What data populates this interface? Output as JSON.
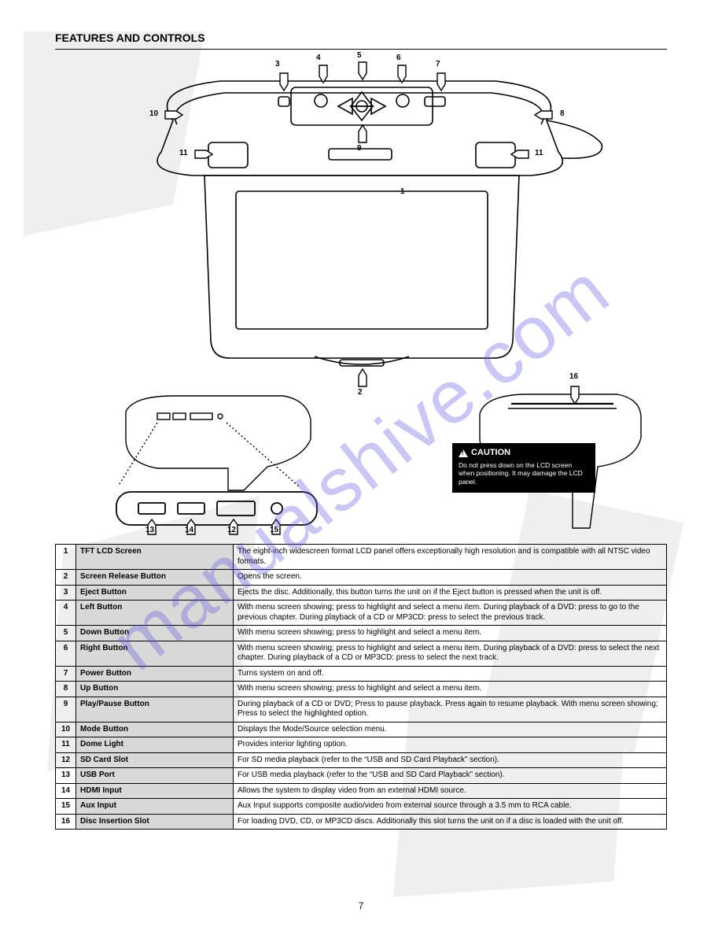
{
  "header": "FEATURES AND CONTROLS",
  "page_number": "7",
  "watermark_text": "manualshive.com",
  "colors": {
    "page_bg": "#ffffff",
    "text": "#000000",
    "rule": "#000000",
    "table_border": "#000000",
    "table_shade": "#d9d9d9",
    "caution_bg": "#000000",
    "caution_text": "#ffffff",
    "watermark": "rgba(90,80,220,0.32)",
    "bg_shape": "#000000"
  },
  "callouts": {
    "c1": "1",
    "c2": "2",
    "c3": "3",
    "c4": "4",
    "c5": "5",
    "c6": "6",
    "c7": "7",
    "c8": "8",
    "c9": "9",
    "c10": "10",
    "c11": "11",
    "c12": "12",
    "c13": "13",
    "c14": "14",
    "c15": "15",
    "c16": "16"
  },
  "caution": {
    "title": "CAUTION",
    "body": "Do not press down on the LCD screen when positioning. It may damage the LCD panel."
  },
  "table": {
    "rows": [
      {
        "n": "1",
        "name": "TFT LCD Screen",
        "desc": "The eight-inch widescreen format LCD panel offers exceptionally high resolution and is compatible with all NTSC video formats."
      },
      {
        "n": "2",
        "name": "Screen Release Button",
        "desc": "Opens the screen."
      },
      {
        "n": "3",
        "name": "Eject Button",
        "desc": "Ejects the disc. Additionally, this button turns the unit on if the Eject button is pressed when the unit is off."
      },
      {
        "n": "4",
        "name": "Left Button",
        "desc": "With menu screen showing; press to highlight and select a menu item. During playback of a DVD: press to go to the previous chapter. During playback of a CD or MP3CD: press to select the previous track."
      },
      {
        "n": "5",
        "name": "Down Button",
        "desc": "With menu screen showing; press to highlight and select a menu item."
      },
      {
        "n": "6",
        "name": "Right Button",
        "desc": "With menu screen showing; press to highlight and select a menu item. During playback of a DVD: press to select the next chapter. During playback of a CD or MP3CD: press to select the next track."
      },
      {
        "n": "7",
        "name": "Power Button",
        "desc": "Turns system on and off."
      },
      {
        "n": "8",
        "name": "Up Button",
        "desc": "With menu screen showing; press to highlight and select a menu item."
      },
      {
        "n": "9",
        "name": "Play/Pause Button",
        "desc": "During playback of a CD or DVD; Press to pause playback. Press again to resume playback. With menu screen showing; Press to select the highlighted option."
      },
      {
        "n": "10",
        "name": "Mode Button",
        "desc": "Displays the Mode/Source selection menu."
      },
      {
        "n": "11",
        "name": "Dome Light",
        "desc": "Provides interior lighting option."
      },
      {
        "n": "12",
        "name": "SD Card Slot",
        "desc": "For SD media playback (refer to the “USB and SD Card Playback” section)."
      },
      {
        "n": "13",
        "name": "USB Port",
        "desc": "For USB media playback (refer to the “USB and SD Card Playback” section)."
      },
      {
        "n": "14",
        "name": "HDMI Input",
        "desc": "Allows the system to display video from an external HDMI source."
      },
      {
        "n": "15",
        "name": "Aux Input",
        "desc": "Aux Input supports composite audio/video from external source through a 3.5 mm to RCA cable."
      },
      {
        "n": "16",
        "name": "Disc Insertion Slot",
        "desc": "For loading DVD, CD, or MP3CD discs. Additionally this slot turns the unit on if a disc is loaded with the unit off."
      }
    ]
  }
}
